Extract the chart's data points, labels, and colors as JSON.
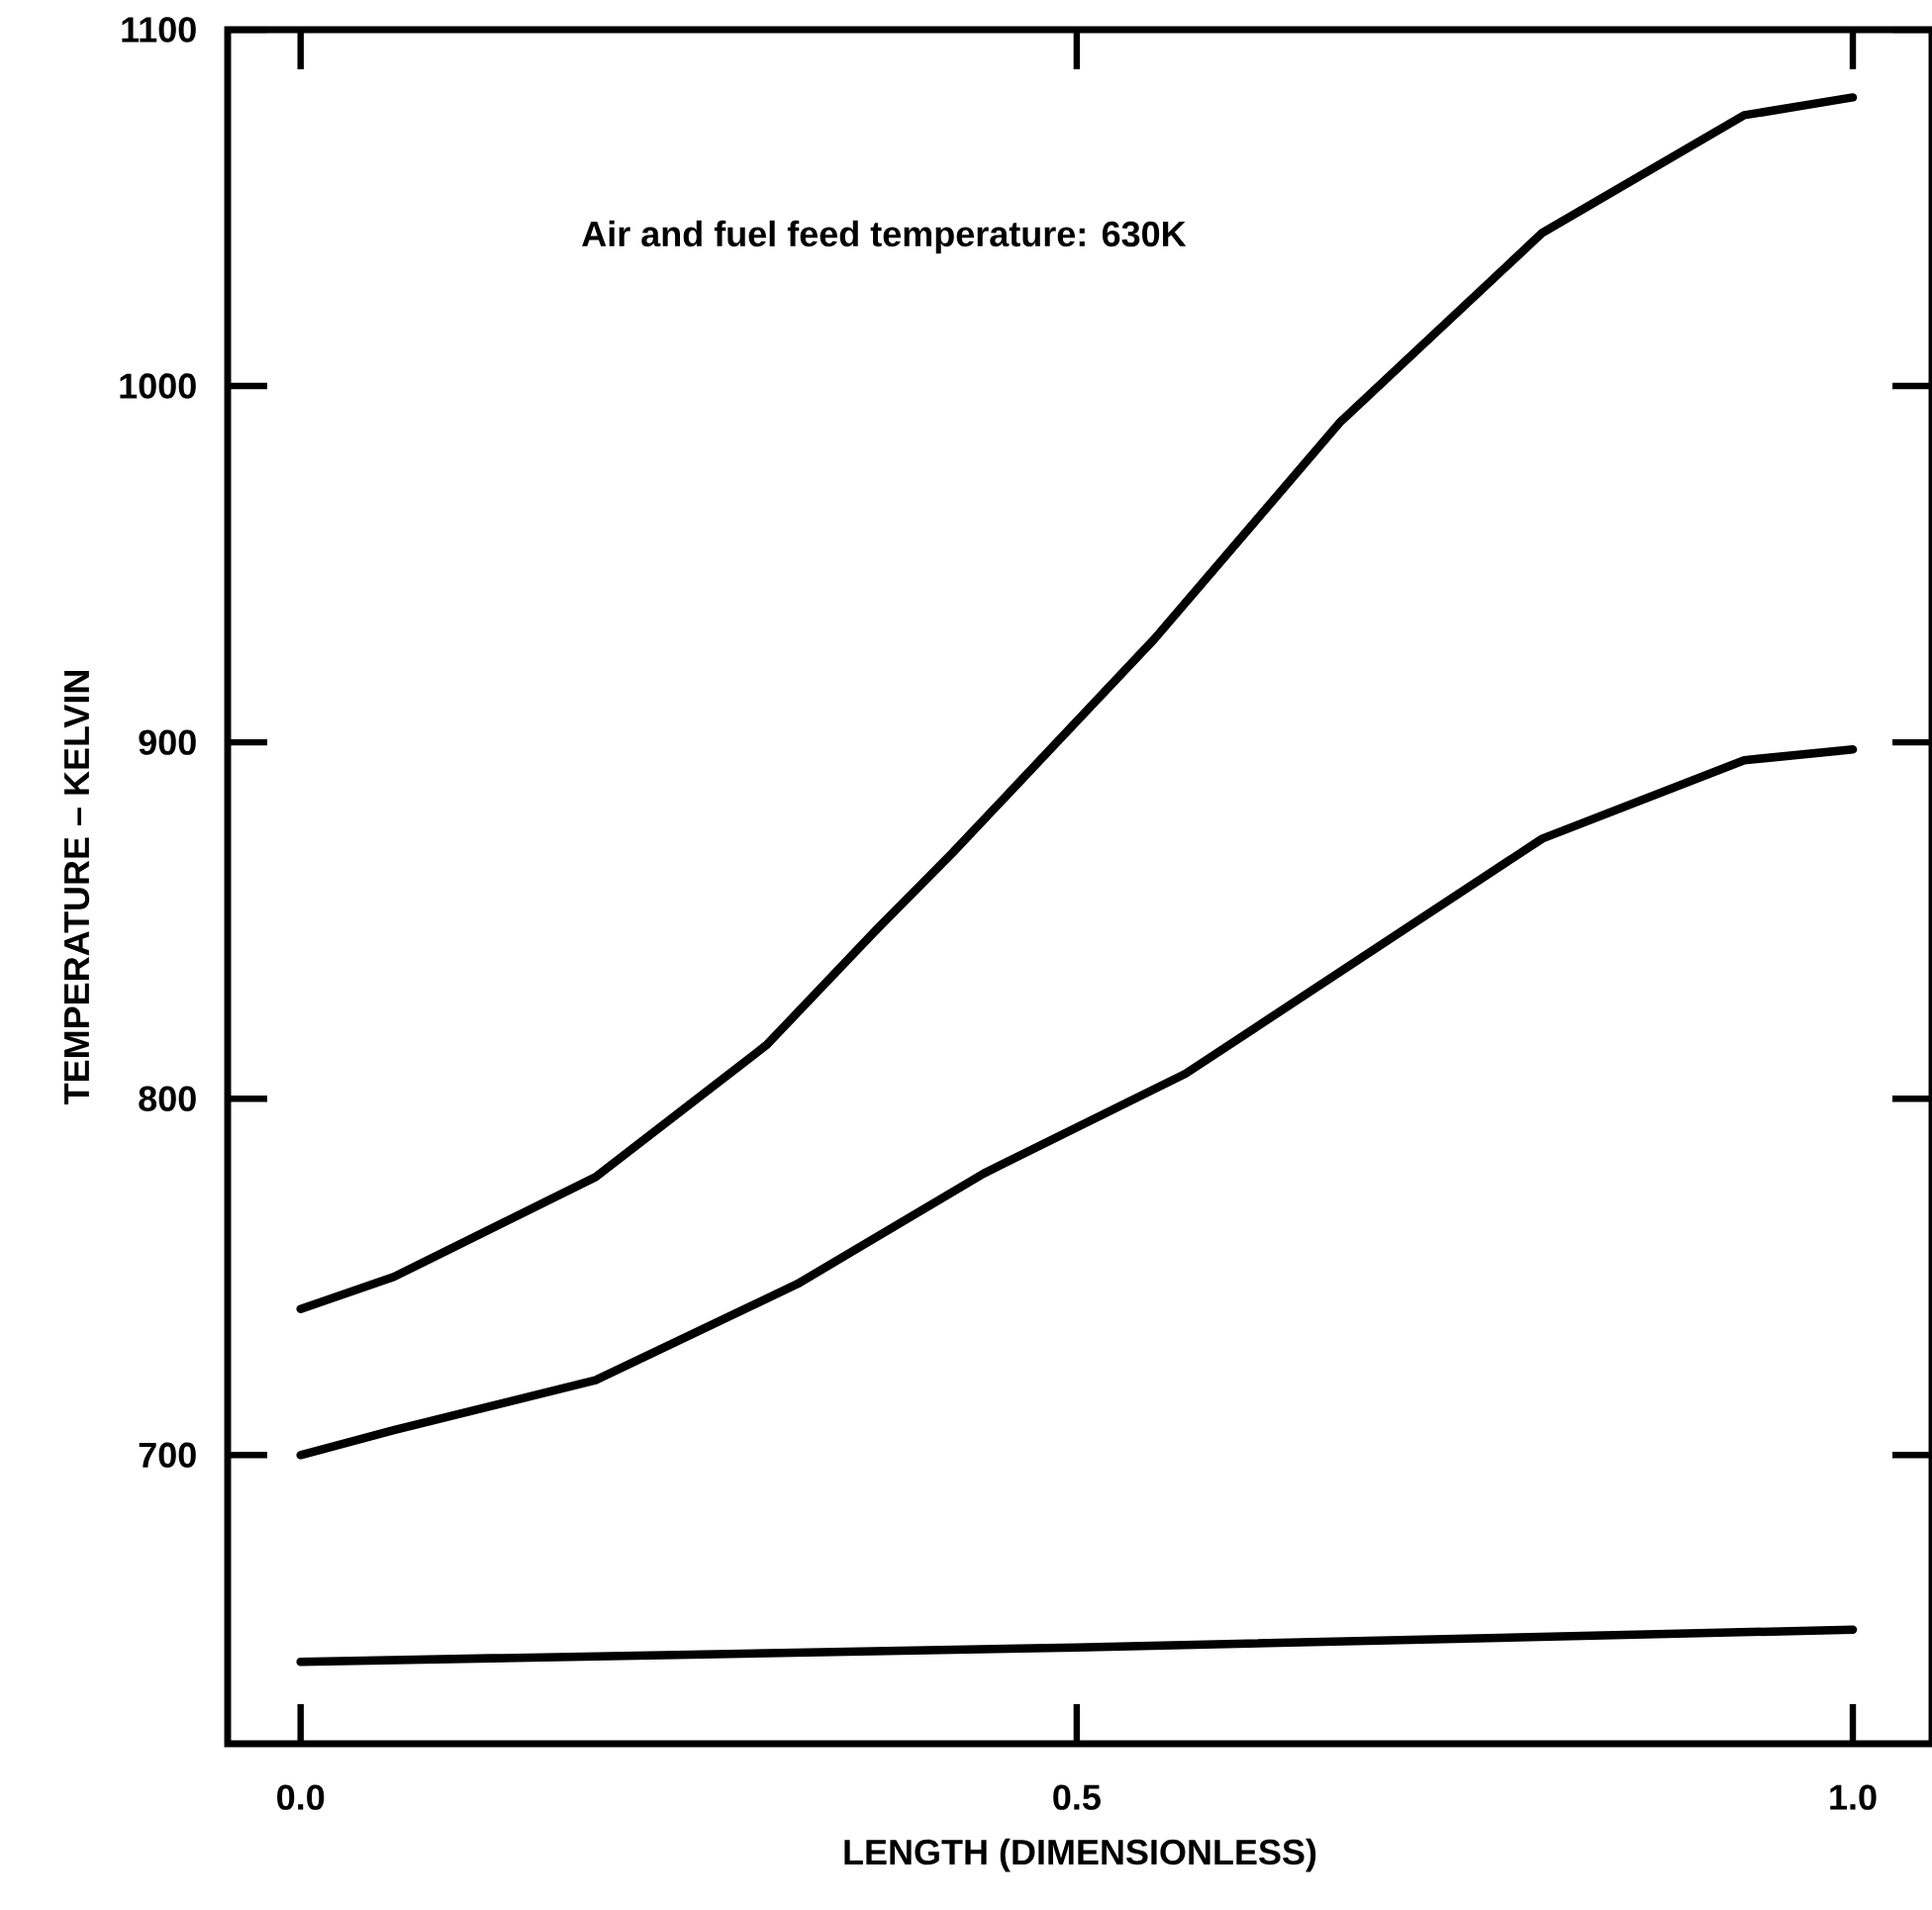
{
  "chart_data": {
    "type": "line",
    "xlabel": "LENGTH (DIMENSIONLESS)",
    "ylabel": "TEMPERATURE – KELVIN",
    "annotations": [
      "Air and fuel feed temperature:  630K"
    ],
    "xlim": [
      -0.047,
      1.051
    ],
    "ylim": [
      619,
      1100
    ],
    "xticks": [
      {
        "value": 0,
        "label": "0.0"
      },
      0.5,
      {
        "value": 1,
        "label": "1.0"
      }
    ],
    "yticks": [
      700,
      800,
      900,
      1000,
      1100
    ],
    "marker": "none",
    "line_style": "solid",
    "series": [
      {
        "color": "#000000",
        "x": [
          0,
          0.06,
          0.19,
          0.3,
          0.37,
          0.42,
          0.55,
          0.67,
          0.8,
          0.93,
          1
        ],
        "values": [
          741,
          750,
          778,
          815,
          847,
          869,
          929,
          990,
          1043,
          1076,
          1081
        ]
      },
      {
        "color": "#000000",
        "x": [
          0,
          0.06,
          0.19,
          0.32,
          0.44,
          0.57,
          0.8,
          0.93,
          1
        ],
        "values": [
          700,
          707,
          721,
          748,
          779,
          807,
          873,
          895,
          898
        ]
      },
      {
        "color": "#000000",
        "x": [
          0,
          0.5,
          1
        ],
        "values": [
          642,
          646,
          651
        ]
      }
    ]
  }
}
